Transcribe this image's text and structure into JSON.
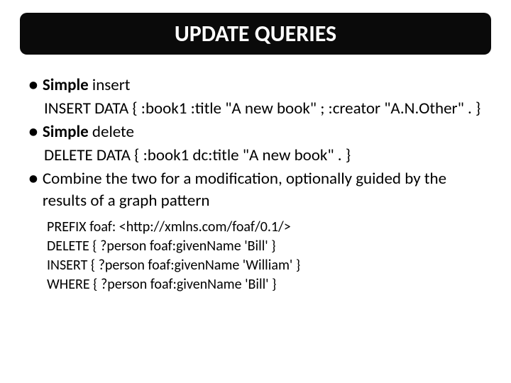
{
  "title": "UPDATE QUERIES",
  "bullets": [
    {
      "lead_bold": "Simple",
      "lead_rest": " insert",
      "body": "INSERT DATA { :book1 :title \"A new book\" ; :creator \"A.N.Other\" . }"
    },
    {
      "lead_bold": "Simple",
      "lead_rest": " delete",
      "body": "DELETE DATA { :book1 dc:title \"A new book\" . }"
    },
    {
      "lead_bold": "",
      "lead_rest": "Combine the two for a modification, optionally guided by the results of a graph pattern",
      "body": ""
    }
  ],
  "code_lines": [
    "PREFIX foaf: <http://xmlns.com/foaf/0.1/>",
    "DELETE { ?person foaf:givenName 'Bill' }",
    "INSERT { ?person foaf:givenName 'William' }",
    "WHERE { ?person foaf:givenName 'Bill' }"
  ],
  "colors": {
    "title_bg": "#0a0a0a",
    "title_text": "#ffffff",
    "body_text": "#000000",
    "slide_bg": "#ffffff"
  },
  "fonts": {
    "title_size": 32,
    "body_size": 23,
    "code_size": 20,
    "family": "Calibri"
  }
}
